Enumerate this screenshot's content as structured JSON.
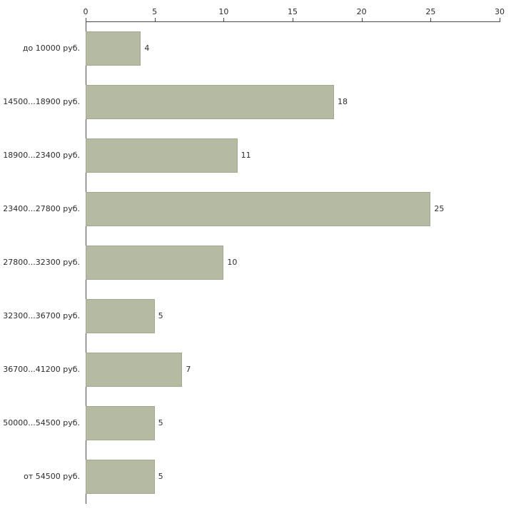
{
  "chart_data": {
    "type": "bar",
    "orientation": "horizontal",
    "title": "",
    "xlabel": "",
    "ylabel": "",
    "categories": [
      "до 10000 руб.",
      "14500...18900 руб.",
      "18900...23400 руб.",
      "23400...27800 руб.",
      "27800...32300 руб.",
      "32300...36700 руб.",
      "36700...41200 руб.",
      "50000...54500 руб.",
      "от 54500 руб."
    ],
    "values": [
      4,
      18,
      11,
      25,
      10,
      5,
      7,
      5,
      5
    ],
    "xlim": [
      0,
      30
    ],
    "x_ticks": [
      0,
      5,
      10,
      15,
      20,
      25,
      30
    ],
    "grid": false,
    "legend": false,
    "axis_position": "top",
    "colors": {
      "bar_fill": "#b5bba2",
      "bar_border": "#a3a98f",
      "axis": "#4a4a4a",
      "text": "#2b2b2b",
      "background": "#ffffff"
    }
  }
}
